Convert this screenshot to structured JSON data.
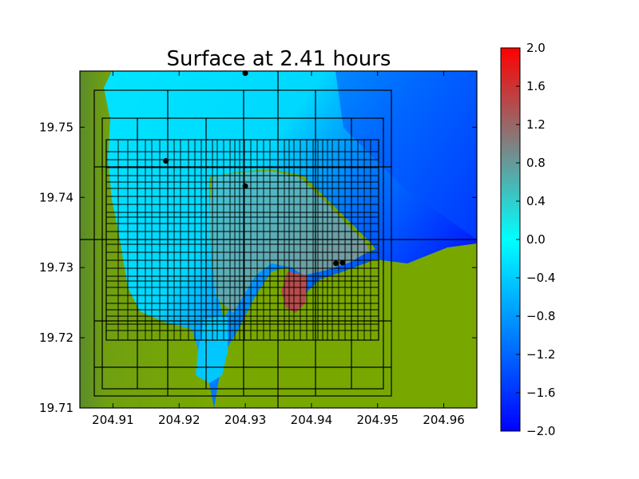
{
  "chart_data": {
    "type": "heatmap",
    "title": "Surface at 2.41 hours",
    "xlabel": "",
    "ylabel": "",
    "xlim": [
      204.905,
      204.965
    ],
    "ylim": [
      19.71,
      19.758
    ],
    "x_ticks": [
      204.91,
      204.92,
      204.93,
      204.94,
      204.95,
      204.96
    ],
    "x_tick_labels": [
      "204.91",
      "204.92",
      "204.93",
      "204.94",
      "204.95",
      "204.96"
    ],
    "y_ticks": [
      19.71,
      19.72,
      19.73,
      19.74,
      19.75
    ],
    "y_tick_labels": [
      "19.71",
      "19.72",
      "19.73",
      "19.74",
      "19.75"
    ],
    "colorbar": {
      "range": [
        -2.0,
        2.0
      ],
      "ticks": [
        2.0,
        1.6,
        1.2,
        0.8,
        0.4,
        0.0,
        -0.4,
        -0.8,
        -1.2,
        -1.6,
        -2.0
      ],
      "tick_labels": [
        "2.0",
        "1.6",
        "1.2",
        "0.8",
        "0.4",
        "0.0",
        "−0.4",
        "−0.8",
        "−1.2",
        "−1.6",
        "−2.0"
      ],
      "colors": {
        "low": "#0000ff",
        "mid": "#00ffff",
        "high": "#ff0000",
        "gray": "#808080"
      }
    },
    "land_color": "#78a800",
    "land_dark_color": "#5a8c2a",
    "gauges": [
      {
        "x": 204.93,
        "y": 19.7577
      },
      {
        "x": 204.918,
        "y": 19.7452
      },
      {
        "x": 204.93,
        "y": 19.7416
      },
      {
        "x": 204.9437,
        "y": 19.7306
      },
      {
        "x": 204.9447,
        "y": 19.7307
      }
    ],
    "grid_lines": true
  }
}
